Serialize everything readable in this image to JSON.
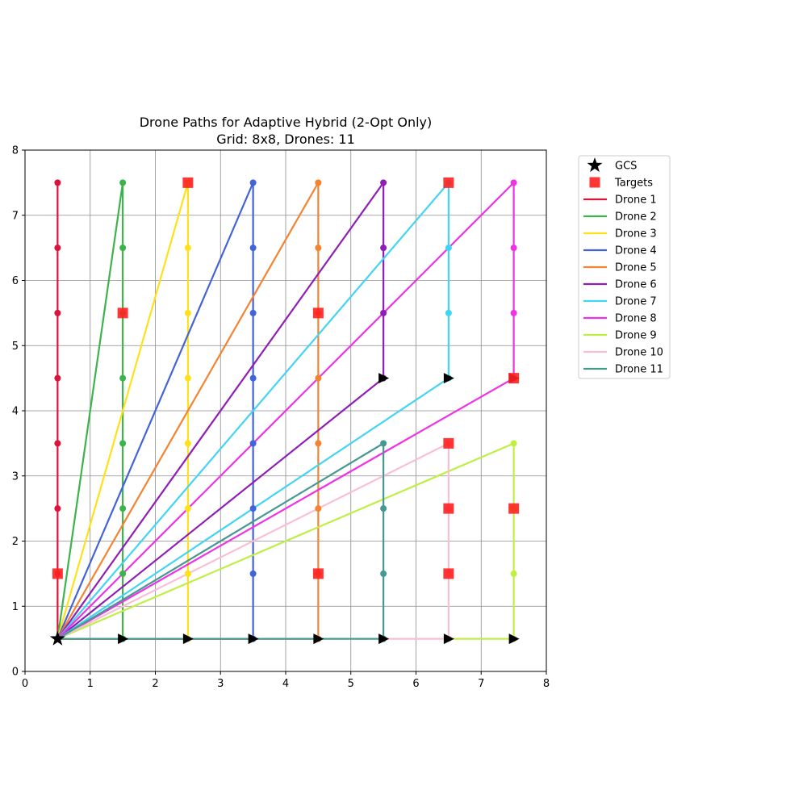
{
  "chart_data": {
    "type": "line",
    "title": "Drone Paths for Adaptive Hybrid (2-Opt Only)",
    "subtitle": "Grid: 8x8, Drones: 11",
    "xlabel": "",
    "ylabel": "",
    "xlim": [
      0,
      8
    ],
    "ylim": [
      0,
      8
    ],
    "x_ticks": [
      "0",
      "1",
      "2",
      "3",
      "4",
      "5",
      "6",
      "7",
      "8"
    ],
    "y_ticks": [
      "0",
      "1",
      "2",
      "3",
      "4",
      "5",
      "6",
      "7",
      "8"
    ],
    "grid": true,
    "legend_placement": "outside-top-right",
    "gcs": {
      "label": "GCS",
      "x": 0.5,
      "y": 0.5,
      "color": "#000000"
    },
    "targets": {
      "label": "Targets",
      "color": "#ff2020",
      "points": [
        [
          0.5,
          1.5
        ],
        [
          1.5,
          5.5
        ],
        [
          2.5,
          7.5
        ],
        [
          4.5,
          5.5
        ],
        [
          4.5,
          1.5
        ],
        [
          6.5,
          7.5
        ],
        [
          7.5,
          4.5
        ],
        [
          6.5,
          3.5
        ],
        [
          6.5,
          2.5
        ],
        [
          7.5,
          2.5
        ],
        [
          6.5,
          1.5
        ]
      ]
    },
    "series": [
      {
        "name": "Drone 1",
        "color": "#dc143c",
        "path": [
          [
            0.5,
            0.5
          ],
          [
            0.5,
            7.5
          ],
          [
            0.5,
            0.5
          ]
        ],
        "visits": [
          [
            0.5,
            1.5
          ],
          [
            0.5,
            2.5
          ],
          [
            0.5,
            3.5
          ],
          [
            0.5,
            4.5
          ],
          [
            0.5,
            5.5
          ],
          [
            0.5,
            6.5
          ],
          [
            0.5,
            7.5
          ]
        ]
      },
      {
        "name": "Drone 2",
        "color": "#3cb44b",
        "path": [
          [
            0.5,
            0.5
          ],
          [
            1.5,
            7.5
          ],
          [
            1.5,
            0.5
          ],
          [
            0.5,
            0.5
          ]
        ],
        "visits": [
          [
            1.5,
            7.5
          ],
          [
            1.5,
            6.5
          ],
          [
            1.5,
            5.5
          ],
          [
            1.5,
            4.5
          ],
          [
            1.5,
            3.5
          ],
          [
            1.5,
            2.5
          ],
          [
            1.5,
            1.5
          ],
          [
            1.5,
            0.5
          ]
        ]
      },
      {
        "name": "Drone 3",
        "color": "#ffe119",
        "path": [
          [
            0.5,
            0.5
          ],
          [
            2.5,
            7.5
          ],
          [
            2.5,
            0.5
          ],
          [
            0.5,
            0.5
          ]
        ],
        "visits": [
          [
            2.5,
            7.5
          ],
          [
            2.5,
            6.5
          ],
          [
            2.5,
            5.5
          ],
          [
            2.5,
            4.5
          ],
          [
            2.5,
            3.5
          ],
          [
            2.5,
            2.5
          ],
          [
            2.5,
            1.5
          ],
          [
            2.5,
            0.5
          ]
        ]
      },
      {
        "name": "Drone 4",
        "color": "#4363d8",
        "path": [
          [
            0.5,
            0.5
          ],
          [
            3.5,
            7.5
          ],
          [
            3.5,
            0.5
          ],
          [
            0.5,
            0.5
          ]
        ],
        "visits": [
          [
            3.5,
            7.5
          ],
          [
            3.5,
            6.5
          ],
          [
            3.5,
            5.5
          ],
          [
            3.5,
            4.5
          ],
          [
            3.5,
            3.5
          ],
          [
            3.5,
            2.5
          ],
          [
            3.5,
            1.5
          ],
          [
            3.5,
            0.5
          ]
        ]
      },
      {
        "name": "Drone 5",
        "color": "#f58231",
        "path": [
          [
            0.5,
            0.5
          ],
          [
            4.5,
            7.5
          ],
          [
            4.5,
            0.5
          ],
          [
            0.5,
            0.5
          ]
        ],
        "visits": [
          [
            4.5,
            7.5
          ],
          [
            4.5,
            6.5
          ],
          [
            4.5,
            5.5
          ],
          [
            4.5,
            4.5
          ],
          [
            4.5,
            3.5
          ],
          [
            4.5,
            2.5
          ],
          [
            4.5,
            1.5
          ],
          [
            4.5,
            0.5
          ]
        ]
      },
      {
        "name": "Drone 6",
        "color": "#911eb4",
        "path": [
          [
            0.5,
            0.5
          ],
          [
            5.5,
            7.5
          ],
          [
            5.5,
            4.5
          ],
          [
            0.5,
            0.5
          ]
        ],
        "visits": [
          [
            5.5,
            7.5
          ],
          [
            5.5,
            6.5
          ],
          [
            5.5,
            5.5
          ],
          [
            5.5,
            4.5
          ]
        ]
      },
      {
        "name": "Drone 7",
        "color": "#42d4f4",
        "path": [
          [
            0.5,
            0.5
          ],
          [
            6.5,
            7.5
          ],
          [
            6.5,
            4.5
          ],
          [
            0.5,
            0.5
          ]
        ],
        "visits": [
          [
            6.5,
            7.5
          ],
          [
            6.5,
            6.5
          ],
          [
            6.5,
            5.5
          ],
          [
            6.5,
            4.5
          ]
        ]
      },
      {
        "name": "Drone 8",
        "color": "#f032e6",
        "path": [
          [
            0.5,
            0.5
          ],
          [
            7.5,
            7.5
          ],
          [
            7.5,
            4.5
          ],
          [
            0.5,
            0.5
          ]
        ],
        "visits": [
          [
            7.5,
            7.5
          ],
          [
            7.5,
            6.5
          ],
          [
            7.5,
            5.5
          ],
          [
            7.5,
            4.5
          ]
        ]
      },
      {
        "name": "Drone 9",
        "color": "#bfef45",
        "path": [
          [
            0.5,
            0.5
          ],
          [
            7.5,
            3.5
          ],
          [
            7.5,
            0.5
          ],
          [
            6.5,
            0.5
          ]
        ],
        "visits": [
          [
            7.5,
            3.5
          ],
          [
            7.5,
            2.5
          ],
          [
            7.5,
            1.5
          ],
          [
            7.5,
            0.5
          ]
        ]
      },
      {
        "name": "Drone 10",
        "color": "#fabed4",
        "path": [
          [
            0.5,
            0.5
          ],
          [
            6.5,
            3.5
          ],
          [
            6.5,
            0.5
          ],
          [
            5.5,
            0.5
          ]
        ],
        "visits": [
          [
            6.5,
            3.5
          ],
          [
            6.5,
            2.5
          ],
          [
            6.5,
            1.5
          ],
          [
            6.5,
            0.5
          ]
        ]
      },
      {
        "name": "Drone 11",
        "color": "#469990",
        "path": [
          [
            0.5,
            0.5
          ],
          [
            5.5,
            3.5
          ],
          [
            5.5,
            0.5
          ],
          [
            0.5,
            0.5
          ]
        ],
        "visits": [
          [
            5.5,
            3.5
          ],
          [
            5.5,
            2.5
          ],
          [
            5.5,
            1.5
          ],
          [
            5.5,
            0.5
          ]
        ]
      }
    ],
    "end_markers": [
      [
        1.5,
        0.5
      ],
      [
        2.5,
        0.5
      ],
      [
        3.5,
        0.5
      ],
      [
        4.5,
        0.5
      ],
      [
        5.5,
        0.5
      ],
      [
        6.5,
        0.5
      ],
      [
        7.5,
        0.5
      ],
      [
        5.5,
        4.5
      ],
      [
        6.5,
        4.5
      ],
      [
        7.5,
        4.5
      ]
    ]
  }
}
